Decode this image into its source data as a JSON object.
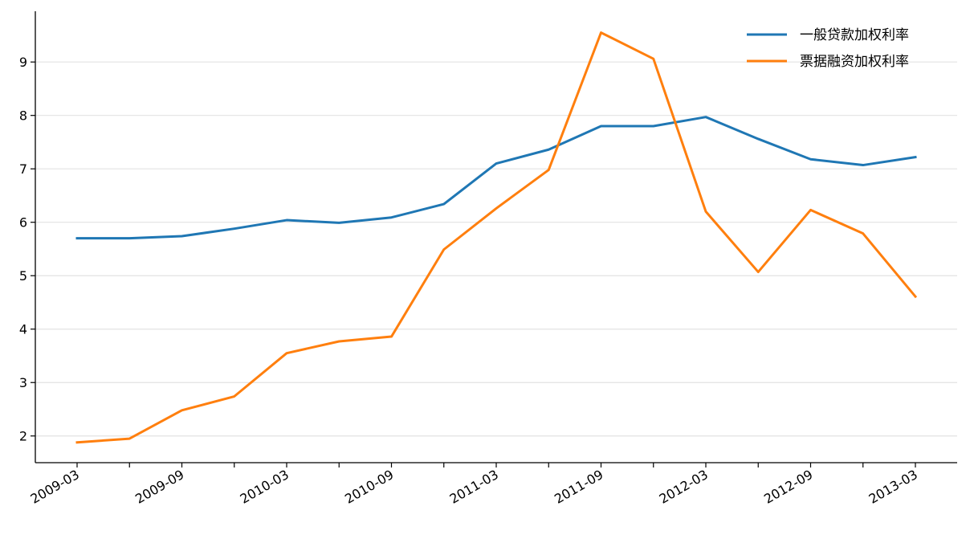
{
  "chart_data": {
    "type": "line",
    "title": "",
    "xlabel": "",
    "ylabel": "",
    "x": [
      "2009-03",
      "2009-06",
      "2009-09",
      "2009-12",
      "2010-03",
      "2010-06",
      "2010-09",
      "2010-12",
      "2011-03",
      "2011-06",
      "2011-09",
      "2011-12",
      "2012-03",
      "2012-06",
      "2012-09",
      "2012-12",
      "2013-03"
    ],
    "x_tick_labels": [
      "2009-03",
      "2009-09",
      "2010-03",
      "2010-09",
      "2011-03",
      "2011-09",
      "2012-03",
      "2012-09",
      "2013-03"
    ],
    "y_ticks": [
      2,
      3,
      4,
      5,
      6,
      7,
      8,
      9
    ],
    "ylim": [
      1.5,
      9.95
    ],
    "grid": "horizontal",
    "legend_position": "top-right",
    "series": [
      {
        "name": "一般贷款加权利率",
        "color": "#1f77b4",
        "values": [
          5.7,
          5.7,
          5.74,
          5.88,
          6.04,
          5.99,
          6.09,
          6.34,
          7.1,
          7.36,
          7.8,
          7.8,
          7.97,
          7.56,
          7.18,
          7.07,
          7.22
        ]
      },
      {
        "name": "票据融资加权利率",
        "color": "#ff7f0e",
        "values": [
          1.88,
          1.95,
          2.48,
          2.74,
          3.55,
          3.77,
          3.86,
          5.49,
          6.26,
          6.98,
          9.55,
          9.06,
          6.2,
          5.07,
          6.23,
          5.79,
          4.61
        ]
      }
    ]
  }
}
